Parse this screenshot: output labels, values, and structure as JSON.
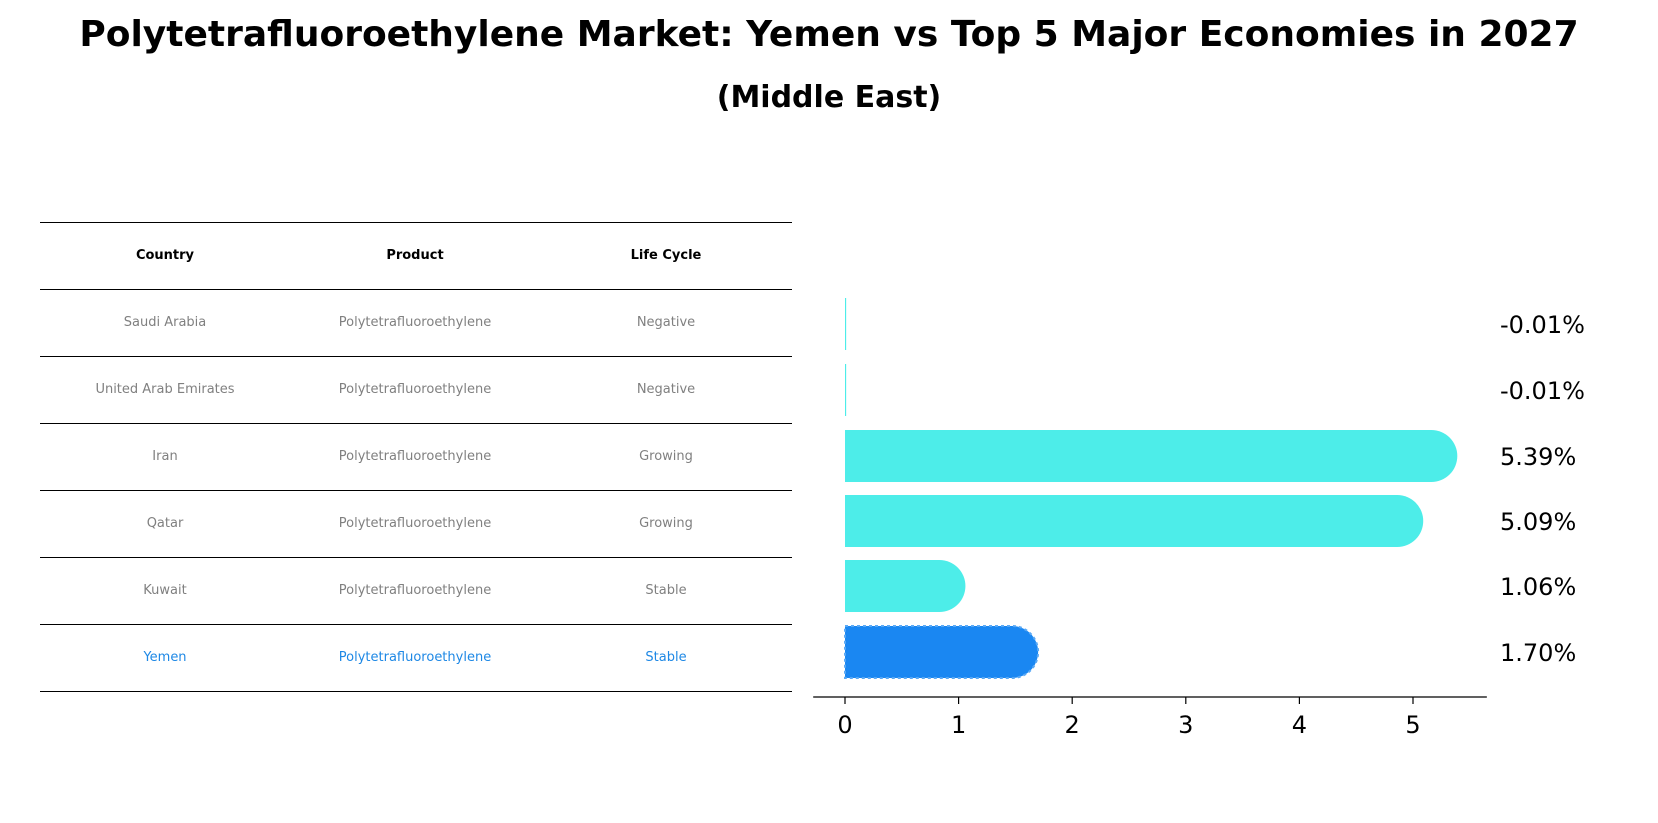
{
  "title": "Polytetrafluoroethylene Market: Yemen vs Top 5 Major Economies in 2027",
  "subtitle": "(Middle East)",
  "table": {
    "headers": [
      "Country",
      "Product",
      "Life Cycle"
    ],
    "rows": [
      [
        "Saudi Arabia",
        "Polytetrafluoroethylene",
        "Negative"
      ],
      [
        "United Arab Emirates",
        "Polytetrafluoroethylene",
        "Negative"
      ],
      [
        "Iran",
        "Polytetrafluoroethylene",
        "Growing"
      ],
      [
        "Qatar",
        "Polytetrafluoroethylene",
        "Growing"
      ],
      [
        "Kuwait",
        "Polytetrafluoroethylene",
        "Stable"
      ],
      [
        "Yemen",
        "Polytetrafluoroethylene",
        "Stable"
      ]
    ]
  },
  "chart_data": {
    "type": "bar",
    "orientation": "horizontal",
    "categories": [
      "Saudi Arabia",
      "United Arab Emirates",
      "Iran",
      "Qatar",
      "Kuwait",
      "Yemen"
    ],
    "values": [
      -0.01,
      -0.01,
      5.39,
      5.09,
      1.06,
      1.7
    ],
    "value_labels": [
      "-0.01%",
      "-0.01%",
      "5.39%",
      "5.09%",
      "1.06%",
      "1.70%"
    ],
    "highlight": "Yemen",
    "xlim": [
      -0.28,
      5.65
    ],
    "xticks": [
      0,
      1,
      2,
      3,
      4,
      5
    ],
    "xlabel": "",
    "ylabel": "",
    "grid": false,
    "colors": {
      "bar": "#4dede9",
      "highlight": "#1a87f2",
      "highlight_text": "#1e88e5",
      "muted_text": "#808080"
    }
  }
}
